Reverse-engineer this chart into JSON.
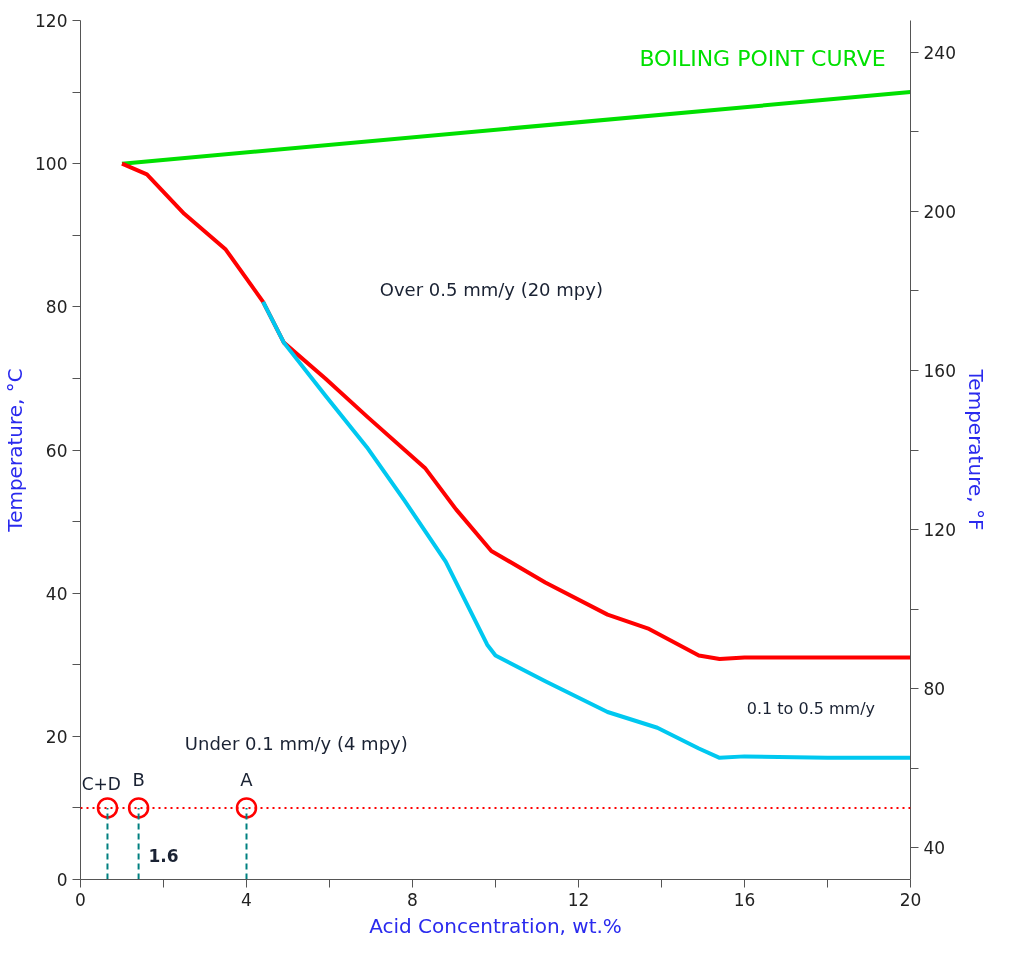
{
  "chart_data": {
    "type": "line",
    "xlabel": "Acid Concentration, wt.%",
    "ylabel": "Temperature, °C",
    "y2label": "Temperature, °F",
    "xlim": [
      0,
      20
    ],
    "xticks": [
      0,
      {
        "value": 2,
        "label": null
      },
      4,
      {
        "value": 6,
        "label": null
      },
      8,
      {
        "value": 10,
        "label": null
      },
      12,
      {
        "value": 14,
        "label": null
      },
      16,
      {
        "value": 18,
        "label": null
      },
      20
    ],
    "ylim": [
      0,
      120
    ],
    "yticks": [
      0,
      {
        "value": 10,
        "label": null
      },
      20,
      {
        "value": 30,
        "label": null
      },
      40,
      {
        "value": 50,
        "label": null
      },
      60,
      {
        "value": 70,
        "label": null
      },
      80,
      {
        "value": 90,
        "label": null
      },
      100,
      {
        "value": 110,
        "label": null
      },
      120
    ],
    "y2lim": [
      32,
      248
    ],
    "y2ticks": [
      40,
      {
        "value": 60,
        "label": null
      },
      80,
      {
        "value": 100,
        "label": null
      },
      120,
      {
        "value": 140,
        "label": null
      },
      160,
      {
        "value": 180,
        "label": null
      },
      200,
      {
        "value": 220,
        "label": null
      },
      240
    ],
    "grid": false,
    "line_style": "solid",
    "series": [
      {
        "name": "BOILING POINT CURVE",
        "color": "#00e000",
        "x": [
          1,
          20
        ],
        "values": [
          100,
          110
        ]
      },
      {
        "color": "#ff0000",
        "x": [
          1,
          1.6,
          2.5,
          3.5,
          4.4,
          4.9,
          5.9,
          6.9,
          8.3,
          9.05,
          9.9,
          11.2,
          12.7,
          13.7,
          14.9,
          15.4,
          16,
          18,
          20
        ],
        "values": [
          100,
          98.5,
          93,
          88,
          80.7,
          75,
          70,
          64.7,
          57.5,
          51.7,
          45.9,
          41.5,
          37,
          35,
          31.3,
          30.8,
          31,
          31,
          31
        ]
      },
      {
        "color": "#00c8f0",
        "x": [
          4.4,
          4.9,
          5.9,
          6.9,
          7.8,
          8.8,
          9.8,
          10.0,
          11.2,
          12.7,
          13.9,
          14.9,
          15.4,
          16,
          18,
          20
        ],
        "values": [
          80.7,
          75,
          67.6,
          60.4,
          53,
          44.4,
          32.8,
          31.3,
          27.7,
          23.4,
          21.2,
          18.3,
          17,
          17.2,
          17,
          17
        ]
      },
      {
        "type": "scatter",
        "marker": "circle",
        "color": "#ff0000",
        "x": [
          0.65,
          1.4,
          4.0
        ],
        "values": [
          10,
          10,
          10
        ]
      },
      {
        "color": "#008080",
        "line_style": "dashed",
        "x": [
          0.65,
          0.65
        ],
        "values": [
          0,
          10
        ]
      },
      {
        "color": "#008080",
        "line_style": "dashed",
        "x": [
          1.4,
          1.4
        ],
        "values": [
          0,
          10
        ]
      },
      {
        "color": "#008080",
        "line_style": "dashed",
        "x": [
          4.0,
          4.0
        ],
        "values": [
          0,
          10
        ]
      }
    ],
    "ref_lines": [
      {
        "axis": "y",
        "value": 10,
        "color": "#ff0000",
        "line_style": "dotted"
      }
    ],
    "annotations": [
      "Over 0.5 mm/y (20 mpy)",
      "0.1 to 0.5 mm/y",
      "Under 0.1 mm/y (4 mpy)",
      "C+D",
      "B",
      "A",
      "1.6"
    ]
  }
}
